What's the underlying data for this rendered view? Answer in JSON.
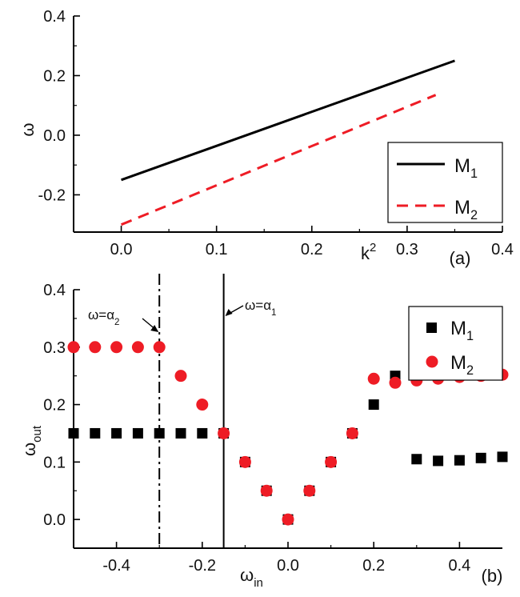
{
  "chart_data": [
    {
      "panel_label": "(a)",
      "type": "line",
      "xlabel": "k",
      "xlabel_sup": "2",
      "ylabel": "ω",
      "xlim": [
        -0.05,
        0.4
      ],
      "ylim": [
        -0.325,
        0.4
      ],
      "xticks": [
        "0.0",
        "0.1",
        "0.2",
        "0.3",
        "0.4"
      ],
      "xtick_values": [
        0.0,
        0.1,
        0.2,
        0.3,
        0.4
      ],
      "yticks": [
        "0.4",
        "0.2",
        "0.0",
        "-0.2"
      ],
      "ytick_values": [
        0.4,
        0.2,
        0.0,
        -0.2
      ],
      "legend_position": "bottom-right",
      "series": [
        {
          "name": "M",
          "sub": "1",
          "style": "solid",
          "color": "#000000",
          "x": [
            0.0,
            0.35
          ],
          "y": [
            -0.15,
            0.25
          ]
        },
        {
          "name": "M",
          "sub": "2",
          "style": "dashed",
          "color": "#ee1c25",
          "x": [
            0.0,
            0.33
          ],
          "y": [
            -0.3,
            0.135
          ]
        }
      ]
    },
    {
      "panel_label": "(b)",
      "type": "scatter",
      "xlabel": "ω",
      "xlabel_sub": "in",
      "ylabel": "ω",
      "ylabel_sub": "out",
      "xlim": [
        -0.5,
        0.5
      ],
      "ylim": [
        -0.05,
        0.4
      ],
      "xticks": [
        "-0.4",
        "-0.2",
        "0.0",
        "0.2",
        "0.4"
      ],
      "xtick_values": [
        -0.4,
        -0.2,
        0.0,
        0.2,
        0.4
      ],
      "yticks": [
        "0.4",
        "0.3",
        "0.2",
        "0.1",
        "0.0"
      ],
      "ytick_values": [
        0.4,
        0.3,
        0.2,
        0.1,
        0.0
      ],
      "legend_position": "top-right",
      "vlines": [
        {
          "x": -0.3,
          "style": "dashdot",
          "label": "ω=α",
          "sub": "2"
        },
        {
          "x": -0.15,
          "style": "solid",
          "label": "ω=α",
          "sub": "1"
        }
      ],
      "series": [
        {
          "name": "M",
          "sub": "1",
          "marker": "square",
          "color": "#000000",
          "x": [
            -0.5,
            -0.45,
            -0.4,
            -0.35,
            -0.3,
            -0.25,
            -0.2,
            -0.15,
            -0.1,
            -0.05,
            0.0,
            0.05,
            0.1,
            0.15,
            0.2,
            0.25,
            0.3,
            0.35,
            0.4,
            0.45,
            0.5
          ],
          "y": [
            0.15,
            0.15,
            0.15,
            0.15,
            0.15,
            0.15,
            0.15,
            0.15,
            0.1,
            0.05,
            0.0,
            0.05,
            0.1,
            0.15,
            0.2,
            0.25,
            0.105,
            0.102,
            0.103,
            0.107,
            0.109
          ]
        },
        {
          "name": "M",
          "sub": "2",
          "marker": "circle",
          "color": "#ee1c25",
          "x": [
            -0.5,
            -0.45,
            -0.4,
            -0.35,
            -0.3,
            -0.25,
            -0.2,
            -0.15,
            -0.1,
            -0.05,
            0.0,
            0.05,
            0.1,
            0.15,
            0.2,
            0.25,
            0.3,
            0.35,
            0.4,
            0.45,
            0.5
          ],
          "y": [
            0.3,
            0.3,
            0.3,
            0.3,
            0.3,
            0.25,
            0.2,
            0.15,
            0.1,
            0.05,
            0.0,
            0.05,
            0.1,
            0.15,
            0.245,
            0.238,
            0.242,
            0.245,
            0.248,
            0.25,
            0.252
          ]
        }
      ]
    }
  ]
}
